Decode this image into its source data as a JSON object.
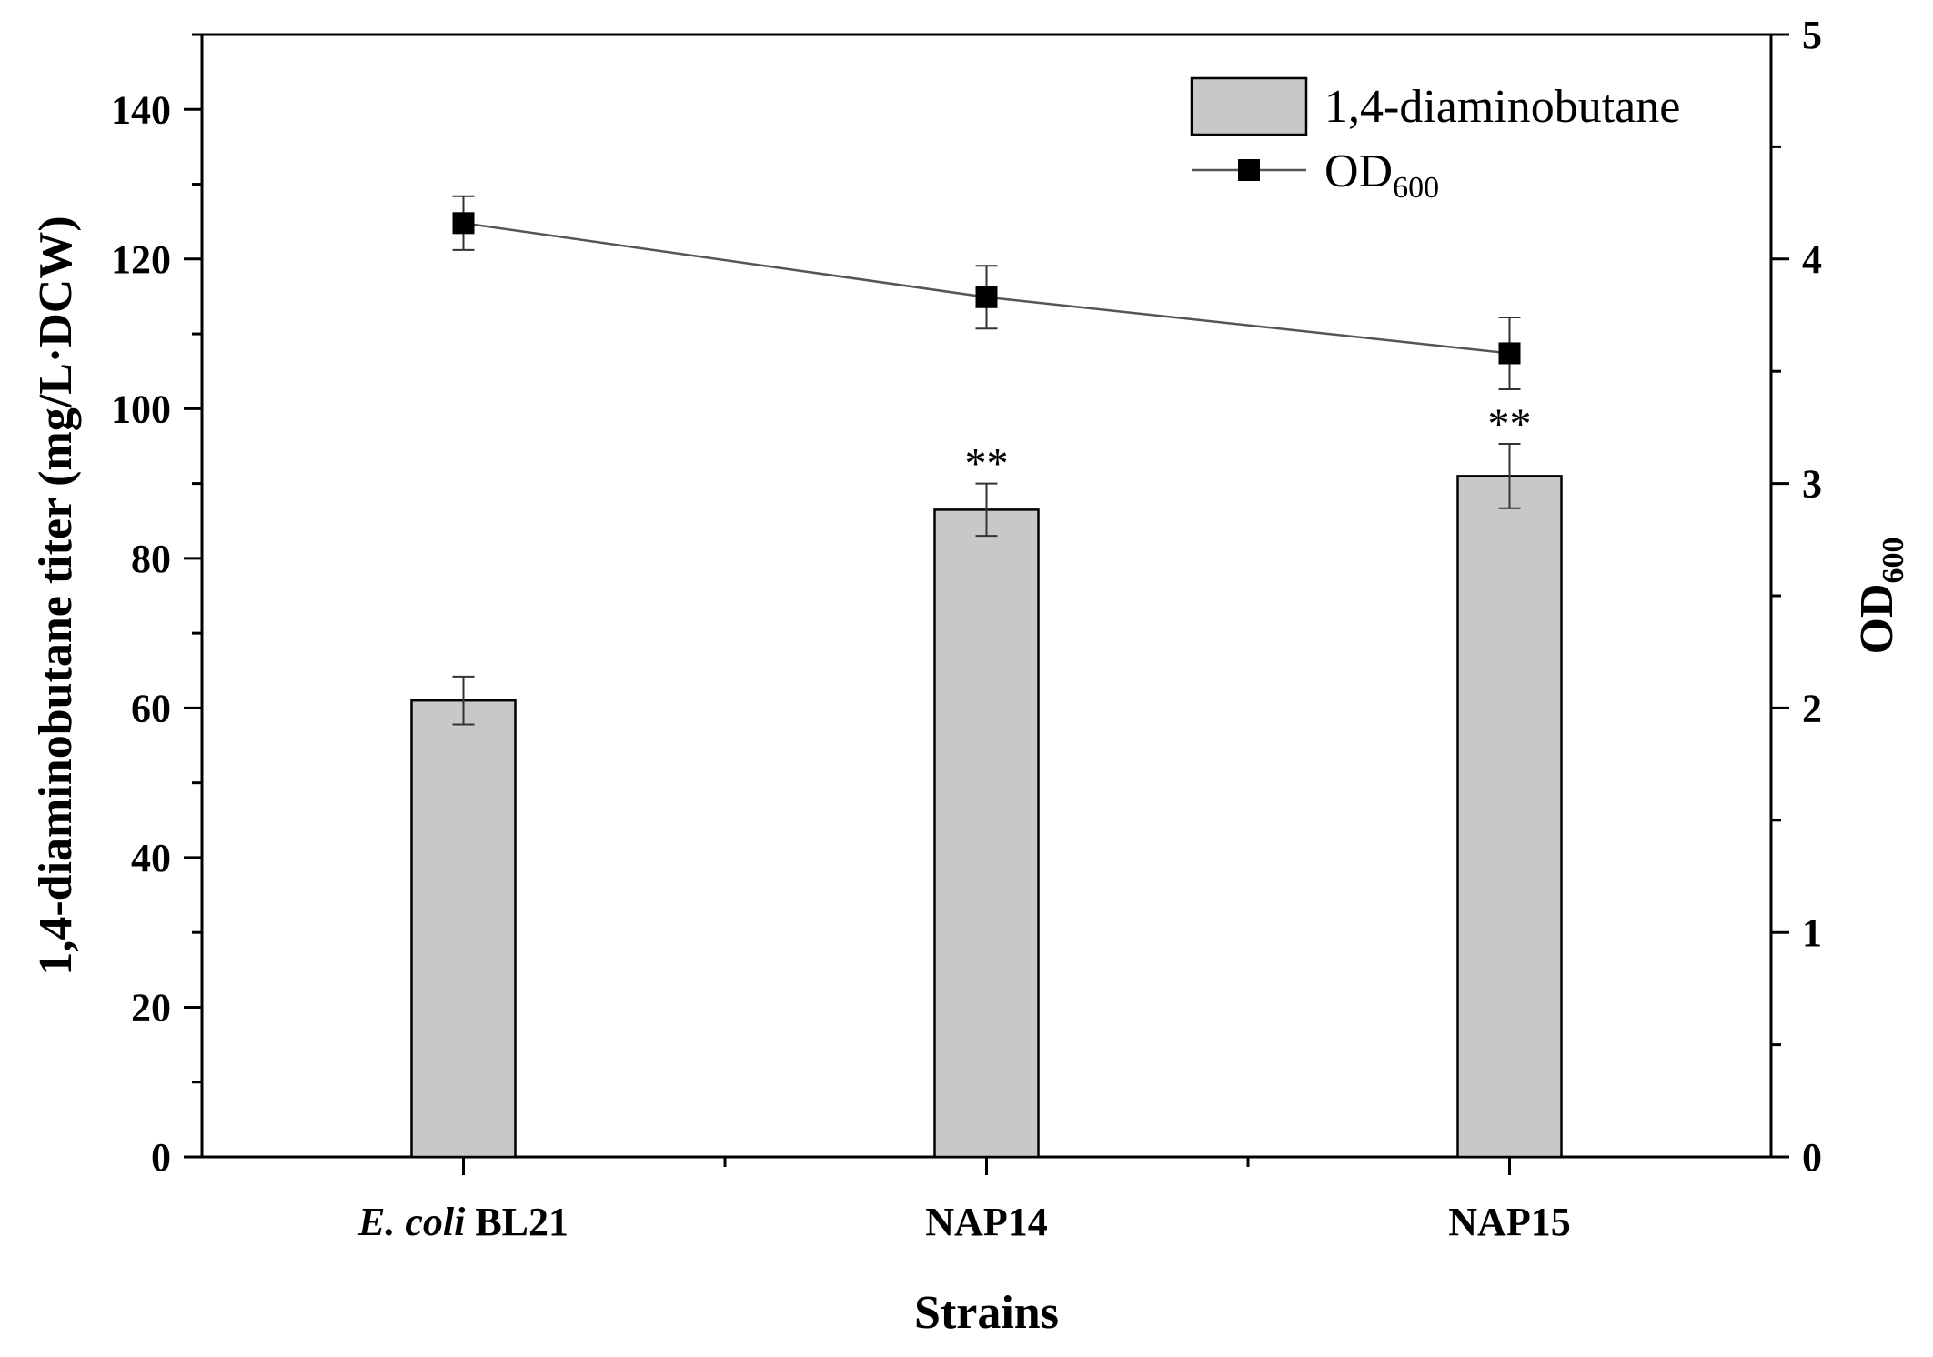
{
  "chart_data": {
    "type": "bar",
    "categories": [
      {
        "label": "BL21",
        "italic_prefix": "E. coli"
      },
      {
        "label": "NAP14",
        "italic_prefix": ""
      },
      {
        "label": "NAP15",
        "italic_prefix": ""
      }
    ],
    "xlabel": "Strains",
    "ylabel": "1,4-diaminobutane titer (mg/L·DCW)",
    "y2label": {
      "main": "OD",
      "sub": "600"
    },
    "ylim": [
      0,
      150
    ],
    "y_ticks": [
      0,
      20,
      40,
      60,
      80,
      100,
      120,
      140
    ],
    "y2lim": [
      0,
      5
    ],
    "y2_ticks": [
      0,
      1,
      2,
      3,
      4,
      5
    ],
    "series": [
      {
        "name": "1,4-diaminobutane",
        "kind": "bar",
        "axis": "left",
        "values": [
          61.0,
          86.5,
          91.0
        ],
        "errors": [
          3.2,
          3.5,
          4.3
        ],
        "significance": [
          "",
          "**",
          "**"
        ],
        "color": "#c8c8c8"
      },
      {
        "name": "OD",
        "name_sub": "600",
        "kind": "line",
        "axis": "right",
        "values": [
          4.16,
          3.83,
          3.58
        ],
        "errors": [
          0.12,
          0.14,
          0.16
        ],
        "color": "#000000"
      }
    ],
    "legend_position": "top-right"
  }
}
